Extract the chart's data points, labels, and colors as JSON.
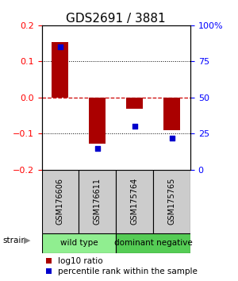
{
  "title": "GDS2691 / 3881",
  "samples": [
    "GSM176606",
    "GSM176611",
    "GSM175764",
    "GSM175765"
  ],
  "log10_ratio": [
    0.153,
    -0.128,
    -0.03,
    -0.09
  ],
  "percentile_rank": [
    85,
    15,
    30,
    22
  ],
  "groups": [
    {
      "label": "wild type",
      "samples": [
        0,
        1
      ],
      "color": "#90ee90"
    },
    {
      "label": "dominant negative",
      "samples": [
        2,
        3
      ],
      "color": "#55cc55"
    }
  ],
  "ylim_left": [
    -0.2,
    0.2
  ],
  "ylim_right": [
    0,
    100
  ],
  "yticks_left": [
    -0.2,
    -0.1,
    0,
    0.1,
    0.2
  ],
  "yticks_right": [
    0,
    25,
    50,
    75,
    100
  ],
  "bar_color": "#aa0000",
  "square_color": "#0000cc",
  "hline_color_zero": "#cc0000",
  "hline_color_grid": "#000000",
  "bar_width": 0.45,
  "square_size": 25,
  "bg_color": "#ffffff",
  "sample_box_color": "#cccccc",
  "strain_label": "strain",
  "legend_red_label": "log10 ratio",
  "legend_blue_label": "percentile rank within the sample",
  "title_fontsize": 11,
  "axis_fontsize": 8,
  "label_fontsize": 7.5,
  "sample_fontsize": 7,
  "group_fontsize": 7.5
}
